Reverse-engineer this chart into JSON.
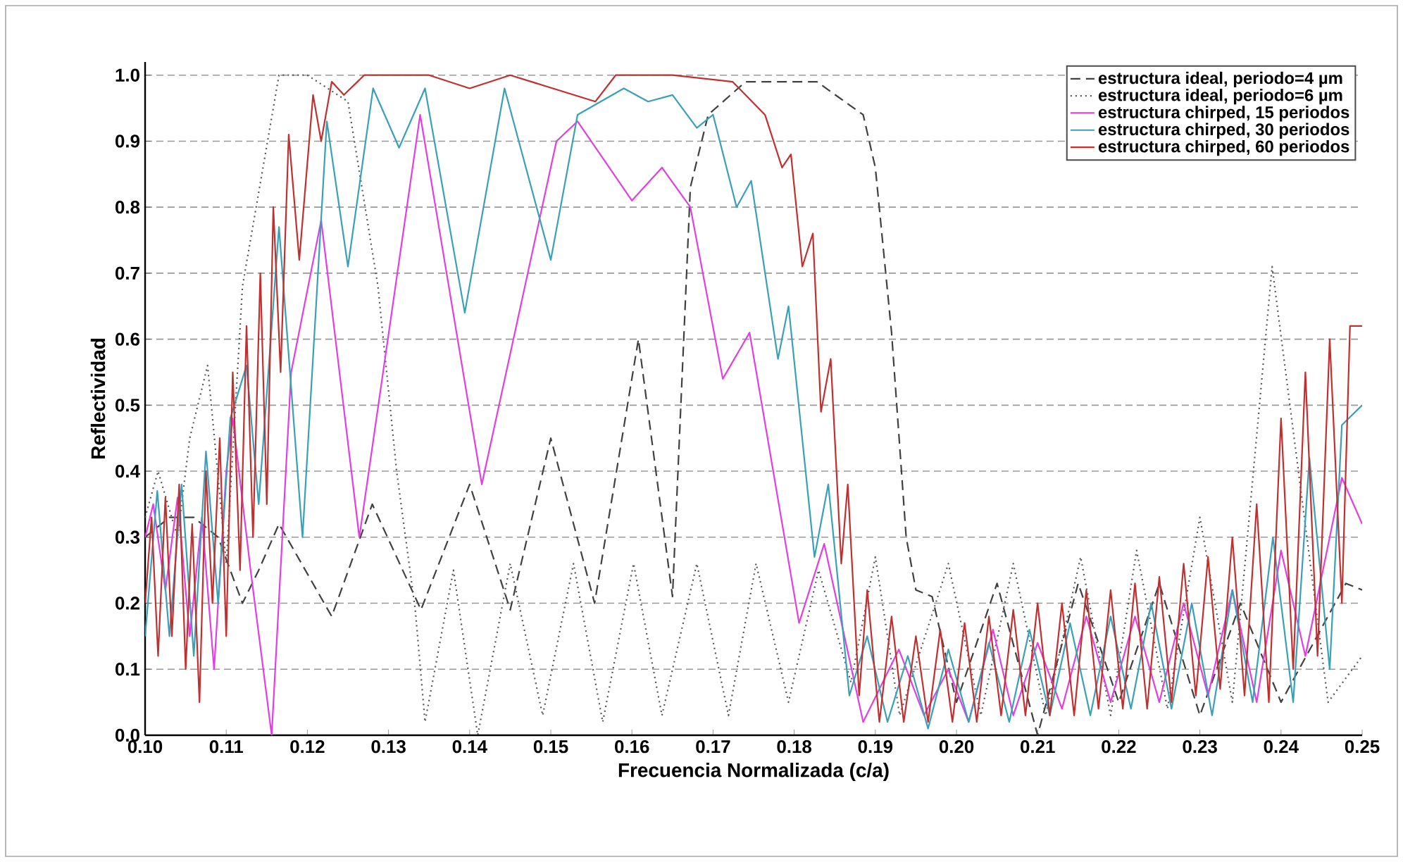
{
  "chart_data": {
    "type": "line",
    "xlabel": "Frecuencia Normalizada (c/a)",
    "ylabel": "Reflectividad",
    "xlim": [
      0.1,
      0.25
    ],
    "ylim": [
      0,
      1.02
    ],
    "xticks": [
      {
        "value": 0.1,
        "label": "0.10"
      },
      {
        "value": 0.11,
        "label": "0.11"
      },
      {
        "value": 0.12,
        "label": "0.12"
      },
      {
        "value": 0.13,
        "label": "0.13"
      },
      {
        "value": 0.14,
        "label": "0.14"
      },
      {
        "value": 0.15,
        "label": "0.15"
      },
      {
        "value": 0.16,
        "label": "0.16"
      },
      {
        "value": 0.17,
        "label": "0.17"
      },
      {
        "value": 0.18,
        "label": "0.18"
      },
      {
        "value": 0.19,
        "label": "0.19"
      },
      {
        "value": 0.2,
        "label": "0.20"
      },
      {
        "value": 0.21,
        "label": "0.21"
      },
      {
        "value": 0.22,
        "label": "0.22"
      },
      {
        "value": 0.23,
        "label": "0.23"
      },
      {
        "value": 0.24,
        "label": "0.24"
      },
      {
        "value": 0.25,
        "label": "0.25"
      }
    ],
    "yticks": [
      {
        "value": 0,
        "label": "0.0"
      },
      {
        "value": 0.1,
        "label": "0.1"
      },
      {
        "value": 0.2,
        "label": "0.2"
      },
      {
        "value": 0.3,
        "label": "0.3"
      },
      {
        "value": 0.4,
        "label": "0.4"
      },
      {
        "value": 0.5,
        "label": "0.5"
      },
      {
        "value": 0.6,
        "label": "0.6"
      },
      {
        "value": 0.7,
        "label": "0.7"
      },
      {
        "value": 0.8,
        "label": "0.8"
      },
      {
        "value": 0.9,
        "label": "0.9"
      },
      {
        "value": 1,
        "label": "1.0"
      }
    ],
    "grid": "y",
    "legend": "top right",
    "series": [
      {
        "name": "estructura ideal, periodo=4 µm",
        "color": "#404040",
        "line_style": "dashed",
        "x": [
          0.1,
          0.103,
          0.106,
          0.109,
          0.112,
          0.114,
          0.1165,
          0.123,
          0.128,
          0.134,
          0.14,
          0.145,
          0.15,
          0.1554,
          0.1608,
          0.165,
          0.1672,
          0.1694,
          0.174,
          0.1828,
          0.1885,
          0.19,
          0.192,
          0.1938,
          0.195,
          0.197,
          0.2,
          0.205,
          0.21,
          0.215,
          0.22,
          0.225,
          0.23,
          0.235,
          0.24,
          0.248,
          0.25
        ],
        "values": [
          0.3,
          0.33,
          0.33,
          0.3,
          0.2,
          0.25,
          0.32,
          0.18,
          0.35,
          0.19,
          0.38,
          0.19,
          0.45,
          0.2,
          0.6,
          0.21,
          0.83,
          0.94,
          0.99,
          0.99,
          0.94,
          0.86,
          0.61,
          0.3,
          0.22,
          0.21,
          0.05,
          0.23,
          0.0,
          0.23,
          0.05,
          0.23,
          0.03,
          0.2,
          0.05,
          0.23,
          0.22
        ]
      },
      {
        "name": "estructura ideal, periodo=6 µm",
        "color": "#555555",
        "line_style": "dotted",
        "x": [
          0.1,
          0.1016,
          0.104,
          0.1055,
          0.1077,
          0.11,
          0.112,
          0.1165,
          0.12,
          0.125,
          0.1287,
          0.131,
          0.1333,
          0.1345,
          0.138,
          0.141,
          0.145,
          0.149,
          0.1528,
          0.1564,
          0.1602,
          0.1637,
          0.168,
          0.1719,
          0.1753,
          0.1793,
          0.183,
          0.187,
          0.19,
          0.193,
          0.199,
          0.203,
          0.207,
          0.211,
          0.2153,
          0.219,
          0.2222,
          0.226,
          0.23,
          0.234,
          0.2389,
          0.2458,
          0.25
        ],
        "values": [
          0.33,
          0.4,
          0.3,
          0.45,
          0.56,
          0.26,
          0.68,
          1.0,
          1.0,
          0.96,
          0.68,
          0.4,
          0.19,
          0.02,
          0.25,
          0.0,
          0.26,
          0.03,
          0.26,
          0.02,
          0.26,
          0.03,
          0.26,
          0.03,
          0.26,
          0.05,
          0.25,
          0.08,
          0.27,
          0.03,
          0.26,
          0.03,
          0.26,
          0.03,
          0.27,
          0.03,
          0.28,
          0.04,
          0.33,
          0.05,
          0.71,
          0.05,
          0.12
        ]
      },
      {
        "name": "estructura chirped, 15 periodos",
        "color": "#e040e0",
        "line_style": "solid",
        "x": [
          0.1,
          0.101,
          0.1025,
          0.104,
          0.1055,
          0.107,
          0.1085,
          0.11,
          0.1108,
          0.113,
          0.1156,
          0.118,
          0.1217,
          0.1264,
          0.1339,
          0.1415,
          0.1507,
          0.1533,
          0.16,
          0.1637,
          0.1672,
          0.1712,
          0.1745,
          0.1806,
          0.1837,
          0.1885,
          0.1929,
          0.196,
          0.199,
          0.2015,
          0.2045,
          0.207,
          0.21,
          0.213,
          0.216,
          0.219,
          0.222,
          0.225,
          0.228,
          0.231,
          0.234,
          0.237,
          0.24,
          0.243,
          0.2475,
          0.25
        ],
        "values": [
          0.3,
          0.35,
          0.22,
          0.36,
          0.15,
          0.33,
          0.1,
          0.4,
          0.48,
          0.25,
          0.0,
          0.55,
          0.78,
          0.3,
          0.94,
          0.38,
          0.9,
          0.93,
          0.81,
          0.86,
          0.8,
          0.54,
          0.61,
          0.17,
          0.29,
          0.02,
          0.13,
          0.03,
          0.1,
          0.02,
          0.16,
          0.03,
          0.14,
          0.04,
          0.18,
          0.05,
          0.18,
          0.05,
          0.2,
          0.06,
          0.22,
          0.05,
          0.28,
          0.12,
          0.39,
          0.32
        ]
      },
      {
        "name": "estructura chirped, 30 periodos",
        "color": "#3aa0b8",
        "line_style": "solid",
        "x": [
          0.1,
          0.1015,
          0.103,
          0.1045,
          0.106,
          0.1075,
          0.109,
          0.1105,
          0.1125,
          0.114,
          0.1165,
          0.1194,
          0.1224,
          0.125,
          0.1281,
          0.1313,
          0.1345,
          0.1394,
          0.1443,
          0.15,
          0.1533,
          0.159,
          0.162,
          0.165,
          0.168,
          0.17,
          0.1729,
          0.1747,
          0.178,
          0.1793,
          0.1825,
          0.1842,
          0.1868,
          0.189,
          0.1915,
          0.194,
          0.1965,
          0.199,
          0.2015,
          0.204,
          0.2065,
          0.209,
          0.2115,
          0.214,
          0.2165,
          0.219,
          0.2215,
          0.224,
          0.2265,
          0.229,
          0.2315,
          0.234,
          0.2365,
          0.239,
          0.2415,
          0.2435,
          0.246,
          0.2475,
          0.25
        ],
        "values": [
          0.15,
          0.37,
          0.15,
          0.38,
          0.12,
          0.43,
          0.2,
          0.48,
          0.56,
          0.35,
          0.77,
          0.3,
          0.93,
          0.71,
          0.98,
          0.89,
          0.98,
          0.64,
          0.98,
          0.72,
          0.94,
          0.98,
          0.96,
          0.97,
          0.92,
          0.94,
          0.8,
          0.84,
          0.57,
          0.65,
          0.27,
          0.38,
          0.06,
          0.15,
          0.02,
          0.12,
          0.01,
          0.13,
          0.02,
          0.14,
          0.02,
          0.16,
          0.03,
          0.17,
          0.03,
          0.18,
          0.04,
          0.2,
          0.04,
          0.2,
          0.03,
          0.22,
          0.05,
          0.3,
          0.05,
          0.42,
          0.1,
          0.47,
          0.5
        ]
      },
      {
        "name": "estructura chirped, 60 periodos",
        "color": "#c03030",
        "line_style": "solid",
        "x": [
          0.1,
          0.1008,
          0.1016,
          0.1025,
          0.1033,
          0.1042,
          0.105,
          0.1058,
          0.1067,
          0.1075,
          0.1083,
          0.1092,
          0.11,
          0.1108,
          0.1117,
          0.1125,
          0.1133,
          0.1142,
          0.115,
          0.1158,
          0.1167,
          0.1177,
          0.119,
          0.1207,
          0.1217,
          0.123,
          0.1245,
          0.127,
          0.135,
          0.14,
          0.145,
          0.1555,
          0.158,
          0.165,
          0.1724,
          0.1764,
          0.1785,
          0.1796,
          0.181,
          0.1823,
          0.1833,
          0.1845,
          0.1858,
          0.1866,
          0.188,
          0.189,
          0.1905,
          0.192,
          0.1935,
          0.195,
          0.1965,
          0.198,
          0.1995,
          0.201,
          0.2025,
          0.204,
          0.2055,
          0.207,
          0.2085,
          0.21,
          0.2115,
          0.213,
          0.2145,
          0.216,
          0.2175,
          0.219,
          0.2205,
          0.222,
          0.2235,
          0.225,
          0.2265,
          0.228,
          0.2295,
          0.231,
          0.2325,
          0.234,
          0.2355,
          0.237,
          0.2385,
          0.24,
          0.2415,
          0.243,
          0.2445,
          0.246,
          0.2475,
          0.2485,
          0.25
        ],
        "values": [
          0.2,
          0.33,
          0.12,
          0.36,
          0.15,
          0.38,
          0.1,
          0.32,
          0.05,
          0.4,
          0.2,
          0.45,
          0.15,
          0.55,
          0.25,
          0.62,
          0.3,
          0.7,
          0.35,
          0.8,
          0.55,
          0.91,
          0.72,
          0.97,
          0.9,
          0.99,
          0.97,
          1.0,
          1.0,
          0.98,
          1.0,
          0.96,
          1.0,
          1.0,
          0.99,
          0.94,
          0.86,
          0.88,
          0.71,
          0.76,
          0.49,
          0.57,
          0.26,
          0.38,
          0.06,
          0.22,
          0.02,
          0.18,
          0.02,
          0.15,
          0.02,
          0.16,
          0.02,
          0.17,
          0.02,
          0.18,
          0.03,
          0.19,
          0.03,
          0.2,
          0.03,
          0.2,
          0.03,
          0.22,
          0.04,
          0.22,
          0.04,
          0.23,
          0.04,
          0.24,
          0.05,
          0.26,
          0.06,
          0.27,
          0.07,
          0.3,
          0.06,
          0.35,
          0.05,
          0.48,
          0.1,
          0.55,
          0.12,
          0.6,
          0.2,
          0.62,
          0.62
        ]
      }
    ]
  }
}
